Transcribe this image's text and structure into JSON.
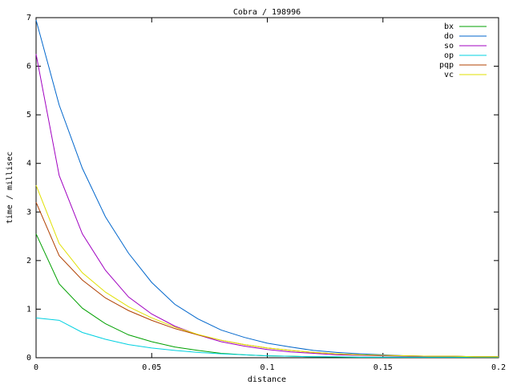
{
  "chart_data": {
    "type": "line",
    "title": "Cobra / 198996",
    "x_label": "distance",
    "y_label": "time / millisec",
    "x": [
      0,
      0.01,
      0.02,
      0.03,
      0.04,
      0.05,
      0.06,
      0.07,
      0.08,
      0.09,
      0.1,
      0.11,
      0.12,
      0.13,
      0.14,
      0.15,
      0.16,
      0.17,
      0.18,
      0.19,
      0.2
    ],
    "series": [
      {
        "name": "bx",
        "color": "#00a000",
        "values": [
          2.55,
          1.52,
          1.02,
          0.7,
          0.47,
          0.33,
          0.22,
          0.15,
          0.09,
          0.06,
          0.04,
          0.03,
          0.02,
          0.015,
          0.01,
          0.01,
          0.01,
          0.01,
          0.01,
          0.01,
          0.01
        ]
      },
      {
        "name": "do",
        "color": "#0066cc",
        "values": [
          6.95,
          5.2,
          3.9,
          2.9,
          2.15,
          1.55,
          1.1,
          0.8,
          0.57,
          0.42,
          0.3,
          0.22,
          0.15,
          0.11,
          0.08,
          0.06,
          0.04,
          0.03,
          0.03,
          0.02,
          0.02
        ]
      },
      {
        "name": "so",
        "color": "#a000c0",
        "values": [
          6.25,
          3.75,
          2.55,
          1.8,
          1.25,
          0.9,
          0.65,
          0.47,
          0.33,
          0.24,
          0.17,
          0.12,
          0.09,
          0.06,
          0.05,
          0.04,
          0.03,
          0.02,
          0.02,
          0.02,
          0.02
        ]
      },
      {
        "name": "op",
        "color": "#00d0e0",
        "values": [
          0.82,
          0.77,
          0.52,
          0.38,
          0.27,
          0.2,
          0.15,
          0.11,
          0.08,
          0.06,
          0.04,
          0.03,
          0.02,
          0.02,
          0.01,
          0.01,
          0.01,
          0.01,
          0.01,
          0.01,
          0.01
        ]
      },
      {
        "name": "pqp",
        "color": "#b04000",
        "values": [
          3.2,
          2.1,
          1.6,
          1.23,
          0.97,
          0.77,
          0.6,
          0.47,
          0.36,
          0.27,
          0.2,
          0.15,
          0.11,
          0.08,
          0.06,
          0.05,
          0.04,
          0.03,
          0.03,
          0.02,
          0.02
        ]
      },
      {
        "name": "vc",
        "color": "#e0e000",
        "values": [
          3.55,
          2.35,
          1.75,
          1.35,
          1.05,
          0.82,
          0.63,
          0.48,
          0.36,
          0.27,
          0.2,
          0.15,
          0.11,
          0.08,
          0.06,
          0.05,
          0.04,
          0.03,
          0.03,
          0.02,
          0.02
        ]
      }
    ],
    "xlim": [
      0,
      0.2
    ],
    "xticks": [
      0,
      0.05,
      0.1,
      0.15,
      0.2
    ],
    "ylim": [
      0,
      7
    ],
    "yticks": [
      0,
      1,
      2,
      3,
      4,
      5,
      6,
      7
    ],
    "legend": "top-right"
  }
}
